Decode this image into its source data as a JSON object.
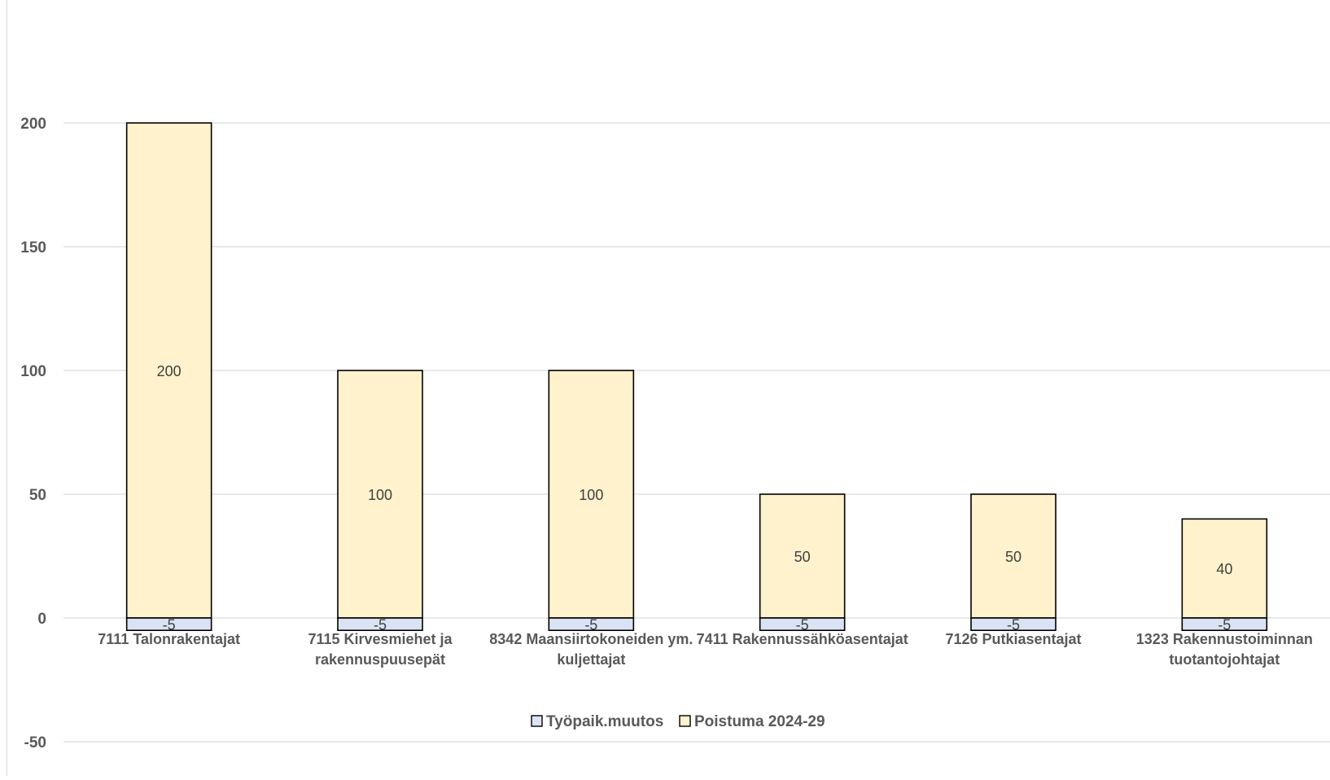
{
  "chart_data": {
    "type": "bar",
    "stacked": true,
    "categories": [
      [
        "7111 Talonrakentajat"
      ],
      [
        "7115 Kirvesmiehet ja",
        "rakennuspuusepät"
      ],
      [
        "8342 Maansiirtokoneiden ym.",
        "kuljettajat"
      ],
      [
        "7411 Rakennussähköasentajat"
      ],
      [
        "7126 Putkiasentajat"
      ],
      [
        "1323 Rakennustoiminnan",
        "tuotantojohtajat"
      ]
    ],
    "series": [
      {
        "name": "Työpaik.muutos",
        "values": [
          -5,
          -5,
          -5,
          -5,
          -5,
          -5
        ],
        "color": "#dae3f3"
      },
      {
        "name": "Poistuma 2024-29",
        "values": [
          200,
          100,
          100,
          50,
          50,
          40
        ],
        "color": "#fff2cc"
      }
    ],
    "y_ticks": [
      "-50",
      "0",
      "50",
      "100",
      "150",
      "200"
    ],
    "ylim": [
      -50,
      200
    ],
    "grid": true,
    "legend_position": "bottom",
    "data_labels": true
  }
}
